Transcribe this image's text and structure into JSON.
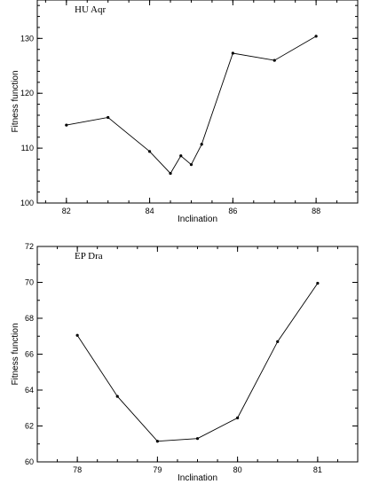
{
  "chart_data": [
    {
      "type": "line",
      "annotation": "HU Aqr",
      "xlabel": "Inclination",
      "ylabel": "Fitness function",
      "xlim": [
        81.3,
        89.0
      ],
      "ylim": [
        100,
        137
      ],
      "xticks": [
        82,
        84,
        86,
        88
      ],
      "yticks": [
        100,
        110,
        120,
        130
      ],
      "x_minor_step": 0.5,
      "y_minor_step": 2,
      "grid": false,
      "series": [
        {
          "x": [
            82.0,
            83.0,
            84.0,
            84.5,
            84.75,
            85.0,
            85.25,
            86.0,
            87.0,
            88.0
          ],
          "y": [
            114.2,
            115.6,
            109.4,
            105.4,
            108.6,
            107.0,
            110.7,
            127.3,
            126.0,
            130.4
          ]
        }
      ]
    },
    {
      "type": "line",
      "annotation": "EP Dra",
      "xlabel": "Inclination",
      "ylabel": "Fitness function",
      "xlim": [
        77.5,
        81.5
      ],
      "ylim": [
        60,
        72
      ],
      "xticks": [
        78,
        79,
        80,
        81
      ],
      "yticks": [
        60,
        62,
        64,
        66,
        68,
        70,
        72
      ],
      "x_minor_step": 0.25,
      "y_minor_step": 1,
      "grid": false,
      "series": [
        {
          "x": [
            78.0,
            78.5,
            79.0,
            79.5,
            80.0,
            80.5,
            81.0
          ],
          "y": [
            67.05,
            63.65,
            61.15,
            61.3,
            62.45,
            66.7,
            69.95
          ]
        }
      ]
    }
  ]
}
